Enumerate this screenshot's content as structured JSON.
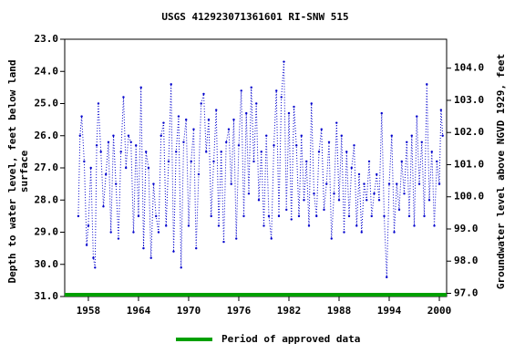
{
  "chart_data": {
    "type": "line",
    "title": "USGS 412923071361601 RI-SNW  515",
    "ylabel": [
      "Depth to water level, feet below land",
      "surface"
    ],
    "y2label": "Groundwater level above NGVD 1929, feet",
    "xlim": [
      1955.17,
      2000.87
    ],
    "xticks": [
      1958,
      1964,
      1970,
      1976,
      1982,
      1988,
      1994,
      2000
    ],
    "ylim": [
      23,
      31
    ],
    "y_inverted": true,
    "yticks": [
      {
        "value": 23,
        "label": "23.0"
      },
      {
        "value": 24,
        "label": "24.0"
      },
      {
        "value": 25,
        "label": "25.0"
      },
      {
        "value": 26,
        "label": "26.0"
      },
      {
        "value": 27,
        "label": "27.0"
      },
      {
        "value": 28,
        "label": "28.0"
      },
      {
        "value": 29,
        "label": "29.0"
      },
      {
        "value": 30,
        "label": "30.0"
      },
      {
        "value": 31,
        "label": "31.0"
      }
    ],
    "y2lim": [
      96.9,
      104.9
    ],
    "y2ticks": [
      {
        "value": 97,
        "label": "97.0"
      },
      {
        "value": 98,
        "label": "98.0"
      },
      {
        "value": 99,
        "label": "99.0"
      },
      {
        "value": 100,
        "label": "100.0"
      },
      {
        "value": 101,
        "label": "101.0"
      },
      {
        "value": 102,
        "label": "102.0"
      },
      {
        "value": 103,
        "label": "103.0"
      },
      {
        "value": 104,
        "label": "104.0"
      }
    ],
    "approved_period": {
      "label": "Period of approved data",
      "color": "#00a000",
      "start": 1955.17,
      "end": 2000.87
    },
    "series": [
      {
        "color": "#0000cc",
        "x": [
          1956.8,
          1957.0,
          1957.2,
          1957.5,
          1957.8,
          1958.0,
          1958.3,
          1958.6,
          1958.8,
          1959.0,
          1959.2,
          1959.5,
          1959.8,
          1960.1,
          1960.4,
          1960.7,
          1961.0,
          1961.3,
          1961.6,
          1961.9,
          1962.2,
          1962.5,
          1962.8,
          1963.1,
          1963.4,
          1963.7,
          1964.0,
          1964.3,
          1964.6,
          1964.9,
          1965.2,
          1965.5,
          1965.8,
          1966.1,
          1966.4,
          1966.7,
          1967.0,
          1967.3,
          1967.6,
          1967.9,
          1968.2,
          1968.5,
          1968.8,
          1969.1,
          1969.4,
          1969.7,
          1970.0,
          1970.3,
          1970.6,
          1970.9,
          1971.2,
          1971.5,
          1971.8,
          1972.1,
          1972.4,
          1972.7,
          1973.0,
          1973.3,
          1973.6,
          1973.9,
          1974.2,
          1974.5,
          1974.8,
          1975.1,
          1975.4,
          1975.7,
          1976.0,
          1976.3,
          1976.6,
          1976.9,
          1977.2,
          1977.5,
          1977.8,
          1978.1,
          1978.4,
          1978.7,
          1979.0,
          1979.3,
          1979.6,
          1979.9,
          1980.2,
          1980.5,
          1980.8,
          1981.1,
          1981.4,
          1981.7,
          1982.0,
          1982.3,
          1982.6,
          1982.9,
          1983.2,
          1983.5,
          1983.8,
          1984.1,
          1984.4,
          1984.7,
          1985.0,
          1985.3,
          1985.6,
          1985.9,
          1986.2,
          1986.5,
          1986.8,
          1987.1,
          1987.4,
          1987.7,
          1988.0,
          1988.3,
          1988.6,
          1988.9,
          1989.2,
          1989.5,
          1989.8,
          1990.1,
          1990.4,
          1990.7,
          1991.0,
          1991.3,
          1991.6,
          1991.9,
          1992.2,
          1992.5,
          1992.8,
          1993.1,
          1993.4,
          1993.7,
          1994.0,
          1994.3,
          1994.6,
          1994.9,
          1995.2,
          1995.5,
          1995.8,
          1996.1,
          1996.4,
          1996.7,
          1997.0,
          1997.3,
          1997.6,
          1997.9,
          1998.2,
          1998.5,
          1998.8,
          1999.1,
          1999.4,
          1999.7,
          2000.0,
          2000.2,
          2000.4
        ],
        "values": [
          28.5,
          26.0,
          25.4,
          26.8,
          29.4,
          28.8,
          27.0,
          29.8,
          30.1,
          26.3,
          25.0,
          26.5,
          28.2,
          27.2,
          26.2,
          29.0,
          26.0,
          27.5,
          29.2,
          26.5,
          24.8,
          27.0,
          26.0,
          26.2,
          29.0,
          26.3,
          28.5,
          24.5,
          29.5,
          26.5,
          27.0,
          29.8,
          27.5,
          28.5,
          29.0,
          26.0,
          25.6,
          28.8,
          26.8,
          24.4,
          29.6,
          26.5,
          25.4,
          30.1,
          26.2,
          25.5,
          28.8,
          26.8,
          25.8,
          29.5,
          27.2,
          25.0,
          24.7,
          26.5,
          25.5,
          28.5,
          26.8,
          25.2,
          28.8,
          26.5,
          29.3,
          26.2,
          25.8,
          27.5,
          25.5,
          29.2,
          26.3,
          24.6,
          28.5,
          25.3,
          27.8,
          24.5,
          26.8,
          25.0,
          28.0,
          26.5,
          28.8,
          26.0,
          28.5,
          29.2,
          26.3,
          24.6,
          28.5,
          24.8,
          23.7,
          28.3,
          25.3,
          28.6,
          25.1,
          26.3,
          28.5,
          26.0,
          28.0,
          26.8,
          28.8,
          25.0,
          27.8,
          28.5,
          26.5,
          25.8,
          28.3,
          27.5,
          26.2,
          29.2,
          27.8,
          25.6,
          28.0,
          26.0,
          29.0,
          26.5,
          28.5,
          27.0,
          26.3,
          28.8,
          27.2,
          29.0,
          27.5,
          28.0,
          26.8,
          28.5,
          27.8,
          27.2,
          28.0,
          25.3,
          28.5,
          30.4,
          27.5,
          26.0,
          29.0,
          27.5,
          28.3,
          26.8,
          27.8,
          26.2,
          28.5,
          26.0,
          28.8,
          25.4,
          27.5,
          26.2,
          28.5,
          24.4,
          28.0,
          26.5,
          28.8,
          26.8,
          27.5,
          25.2,
          26.0
        ]
      }
    ]
  }
}
